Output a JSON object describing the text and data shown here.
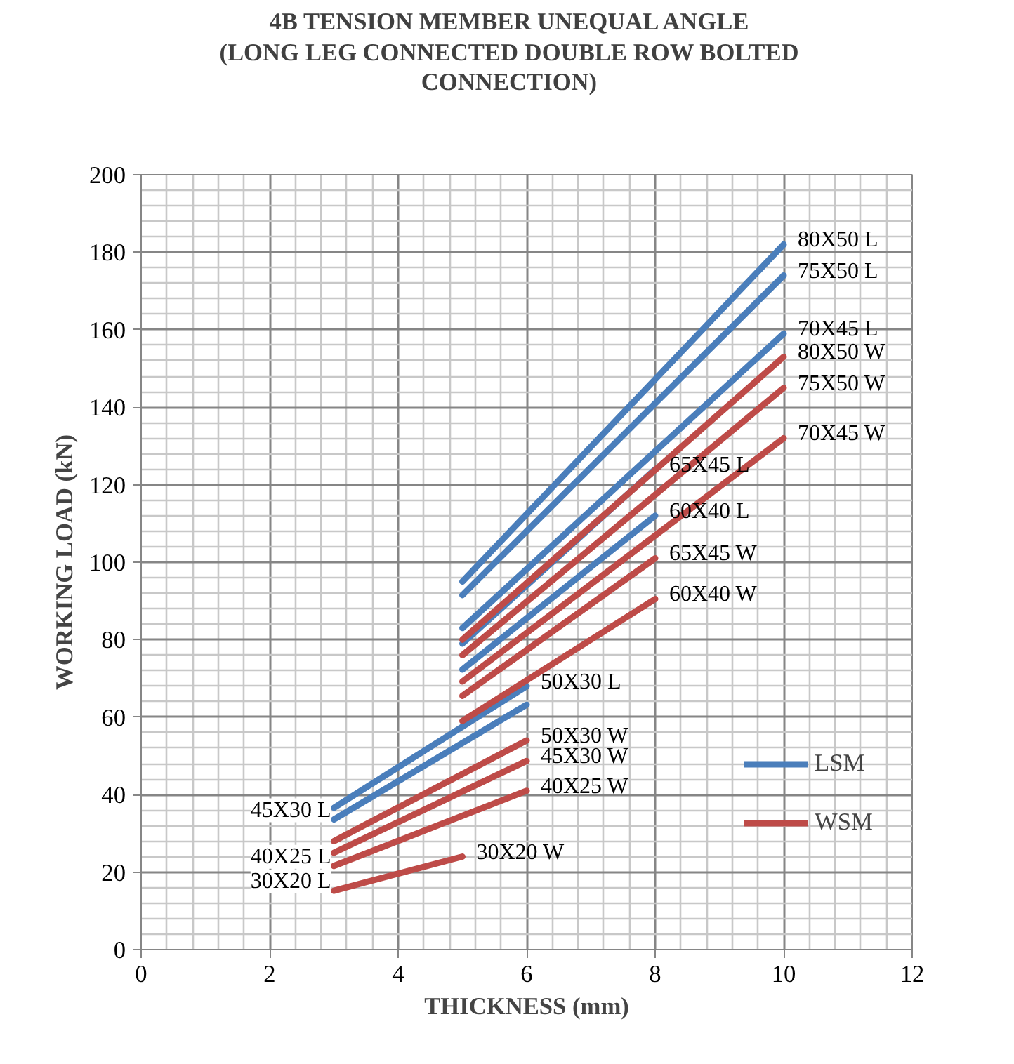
{
  "chart_data": {
    "type": "line",
    "title": "4B TENSION MEMBER UNEQUAL ANGLE\n(LONG LEG CONNECTED  DOUBLE ROW BOLTED\nCONNECTION)",
    "xlabel": "THICKNESS (mm)",
    "ylabel": "WORKING LOAD (kN)",
    "xlim": [
      0,
      12
    ],
    "xticks": [
      0,
      2,
      4,
      6,
      8,
      10,
      12
    ],
    "ylim": [
      0,
      200
    ],
    "yticks": [
      0,
      20,
      40,
      60,
      80,
      100,
      120,
      140,
      160,
      180,
      200
    ],
    "grid": true,
    "legend": "right",
    "line_style": "solid",
    "marker": "none",
    "series": [
      {
        "name": "LSM",
        "color": "#4a7ebb",
        "x": [
          5,
          10
        ],
        "values": [
          95,
          182
        ]
      },
      {
        "color": "#4a7ebb",
        "x": [
          5,
          10
        ],
        "values": [
          91.5,
          174
        ]
      },
      {
        "color": "#4a7ebb",
        "x": [
          5,
          10
        ],
        "values": [
          83,
          159
        ]
      },
      {
        "color": "#4a7ebb",
        "x": [
          5,
          8
        ],
        "values": [
          79,
          124
        ]
      },
      {
        "color": "#4a7ebb",
        "x": [
          5,
          8
        ],
        "values": [
          72.3,
          112
        ]
      },
      {
        "color": "#4a7ebb",
        "x": [
          3,
          6
        ],
        "values": [
          36.6,
          68
        ]
      },
      {
        "color": "#4a7ebb",
        "x": [
          3,
          6
        ],
        "values": [
          33.6,
          63.2
        ]
      },
      {
        "name": "WSM",
        "color": "#be4b48",
        "x": [
          5,
          10
        ],
        "values": [
          80,
          153
        ]
      },
      {
        "color": "#be4b48",
        "x": [
          5,
          10
        ],
        "values": [
          76,
          145
        ]
      },
      {
        "color": "#be4b48",
        "x": [
          5,
          10
        ],
        "values": [
          69.2,
          132
        ]
      },
      {
        "color": "#be4b48",
        "x": [
          5,
          8
        ],
        "values": [
          65.5,
          101
        ]
      },
      {
        "color": "#be4b48",
        "x": [
          5,
          8
        ],
        "values": [
          59,
          90.5
        ]
      },
      {
        "color": "#be4b48",
        "x": [
          3,
          6
        ],
        "values": [
          28,
          54
        ]
      },
      {
        "color": "#be4b48",
        "x": [
          3,
          6
        ],
        "values": [
          25,
          48.7
        ]
      },
      {
        "color": "#be4b48",
        "x": [
          3,
          6
        ],
        "values": [
          21.6,
          41
        ]
      },
      {
        "color": "#be4b48",
        "x": [
          3,
          5
        ],
        "values": [
          15.2,
          24
        ]
      }
    ],
    "annotations": [
      {
        "text": "80X50 L",
        "x": 10,
        "y": 182
      },
      {
        "text": "75X50 L",
        "x": 10,
        "y": 174
      },
      {
        "text": "70X45 L",
        "x": 10,
        "y": 159
      },
      {
        "text": "80X50 W",
        "x": 10,
        "y": 153
      },
      {
        "text": "75X50 W",
        "x": 10,
        "y": 145
      },
      {
        "text": "70X45 W",
        "x": 10,
        "y": 132
      },
      {
        "text": "65X45 L",
        "x": 8,
        "y": 124
      },
      {
        "text": "60X40 L",
        "x": 8,
        "y": 112
      },
      {
        "text": "65X45 W",
        "x": 8,
        "y": 101
      },
      {
        "text": "60X40 W",
        "x": 8,
        "y": 90.5
      },
      {
        "text": "50X30 L",
        "x": 6,
        "y": 68
      },
      {
        "text": "50X30 W",
        "x": 6,
        "y": 54
      },
      {
        "text": "45X30 W",
        "x": 6,
        "y": 48.7
      },
      {
        "text": "40X25 W",
        "x": 6,
        "y": 41
      },
      {
        "text": "30X20 W",
        "x": 5,
        "y": 24
      },
      {
        "text": "45X30 L",
        "x": 3,
        "y": 33.6
      },
      {
        "text": "40X25 L",
        "x": 3,
        "y": 21.6
      },
      {
        "text": "30X20 L",
        "x": 3,
        "y": 15.2
      }
    ]
  }
}
